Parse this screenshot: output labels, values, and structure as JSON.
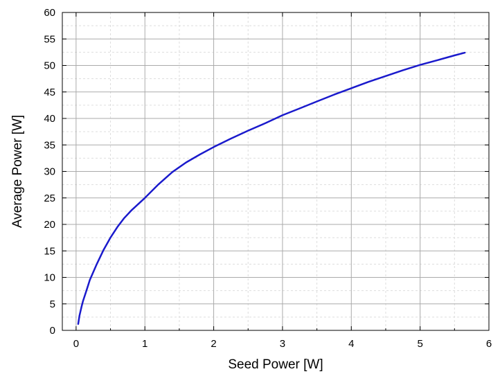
{
  "chart_data": {
    "type": "line",
    "title": "",
    "xlabel": "Seed Power [W]",
    "ylabel": "Average Power [W]",
    "xlim": [
      -0.2,
      6
    ],
    "ylim": [
      0,
      60
    ],
    "x_ticks": [
      "0",
      "1",
      "2",
      "3",
      "4",
      "5",
      "6"
    ],
    "y_ticks": [
      "0",
      "5",
      "10",
      "15",
      "20",
      "25",
      "30",
      "35",
      "40",
      "45",
      "50",
      "55",
      "60"
    ],
    "grid": true,
    "series": [
      {
        "color": "#1a1acc",
        "x": [
          0.03,
          0.05,
          0.08,
          0.1,
          0.15,
          0.2,
          0.3,
          0.4,
          0.5,
          0.6,
          0.7,
          0.8,
          1.0,
          1.2,
          1.4,
          1.6,
          1.8,
          2.0,
          2.25,
          2.5,
          2.75,
          3.0,
          3.25,
          3.5,
          3.75,
          4.0,
          4.25,
          4.5,
          4.75,
          5.0,
          5.25,
          5.5,
          5.65
        ],
        "y": [
          1.2,
          2.8,
          4.5,
          5.5,
          7.5,
          9.5,
          12.5,
          15.2,
          17.5,
          19.5,
          21.2,
          22.6,
          25.0,
          27.6,
          29.9,
          31.7,
          33.2,
          34.6,
          36.2,
          37.7,
          39.1,
          40.6,
          41.9,
          43.2,
          44.5,
          45.7,
          46.9,
          48.0,
          49.1,
          50.1,
          51.0,
          51.9,
          52.4
        ]
      }
    ]
  }
}
